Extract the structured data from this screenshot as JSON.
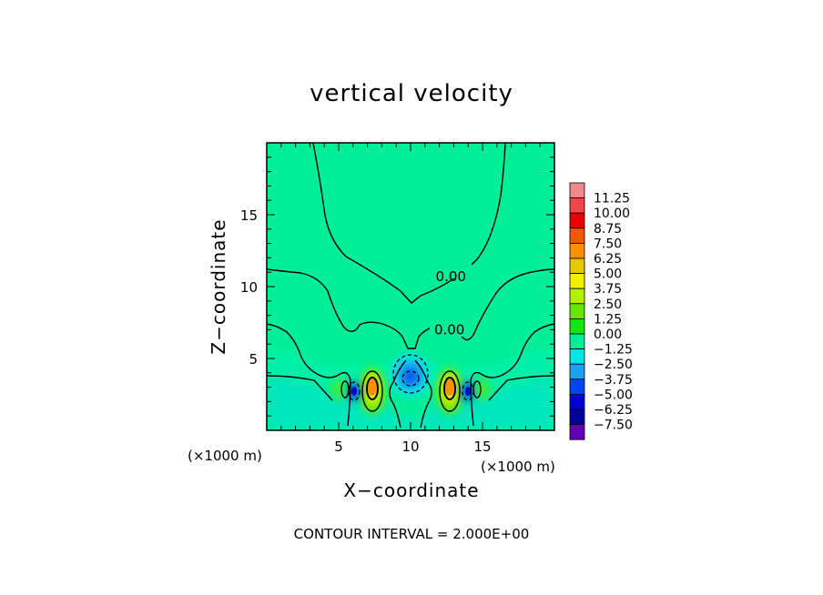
{
  "chart_data": {
    "type": "heatmap",
    "title": "vertical velocity",
    "xlabel": "X−coordinate",
    "ylabel": "Z−coordinate",
    "x_unit": "(×1000 m)",
    "z_unit": "(×1000 m)",
    "xlim": [
      0,
      20
    ],
    "ylim": [
      0,
      20
    ],
    "x_ticks": [
      5,
      10,
      15
    ],
    "y_ticks": [
      5,
      10,
      15
    ],
    "x_tick_labels": [
      "5",
      "10",
      "15"
    ],
    "y_tick_labels": [
      "5",
      "10",
      "15"
    ],
    "contour_labels": [
      {
        "text": "0.00",
        "x": 12.8,
        "z": 10.7
      },
      {
        "text": "0.00",
        "x": 12.7,
        "z": 7.0
      }
    ],
    "note": "CONTOUR INTERVAL = 2.000E+00",
    "colorbar": {
      "labels": [
        "11.25",
        "10.00",
        "8.75",
        "7.50",
        "6.25",
        "5.00",
        "3.75",
        "2.50",
        "1.25",
        "0.00",
        "−1.25",
        "−2.50",
        "−3.75",
        "−5.00",
        "−6.25",
        "−7.50"
      ],
      "colors": [
        "#f08a8a",
        "#f04848",
        "#e80000",
        "#f25a00",
        "#ff9000",
        "#e6c800",
        "#f0f000",
        "#b4ee00",
        "#64e600",
        "#14e614",
        "#00ee96",
        "#00e6e6",
        "#1ea0f0",
        "#0046f0",
        "#0000d2",
        "#00009a",
        "#6400b4"
      ]
    },
    "background_value": 0.5,
    "features": [
      {
        "kind": "updraft",
        "x": 7.3,
        "z": 2.9,
        "peak": 6.9
      },
      {
        "kind": "updraft",
        "x": 12.7,
        "z": 2.9,
        "peak": 6.9
      },
      {
        "kind": "downdraft",
        "x": 6.0,
        "z": 2.8,
        "peak": -4.5
      },
      {
        "kind": "downdraft",
        "x": 14.0,
        "z": 2.8,
        "peak": -4.5
      },
      {
        "kind": "downdraft",
        "x": 10.0,
        "z": 3.6,
        "peak": -3.2
      }
    ]
  }
}
